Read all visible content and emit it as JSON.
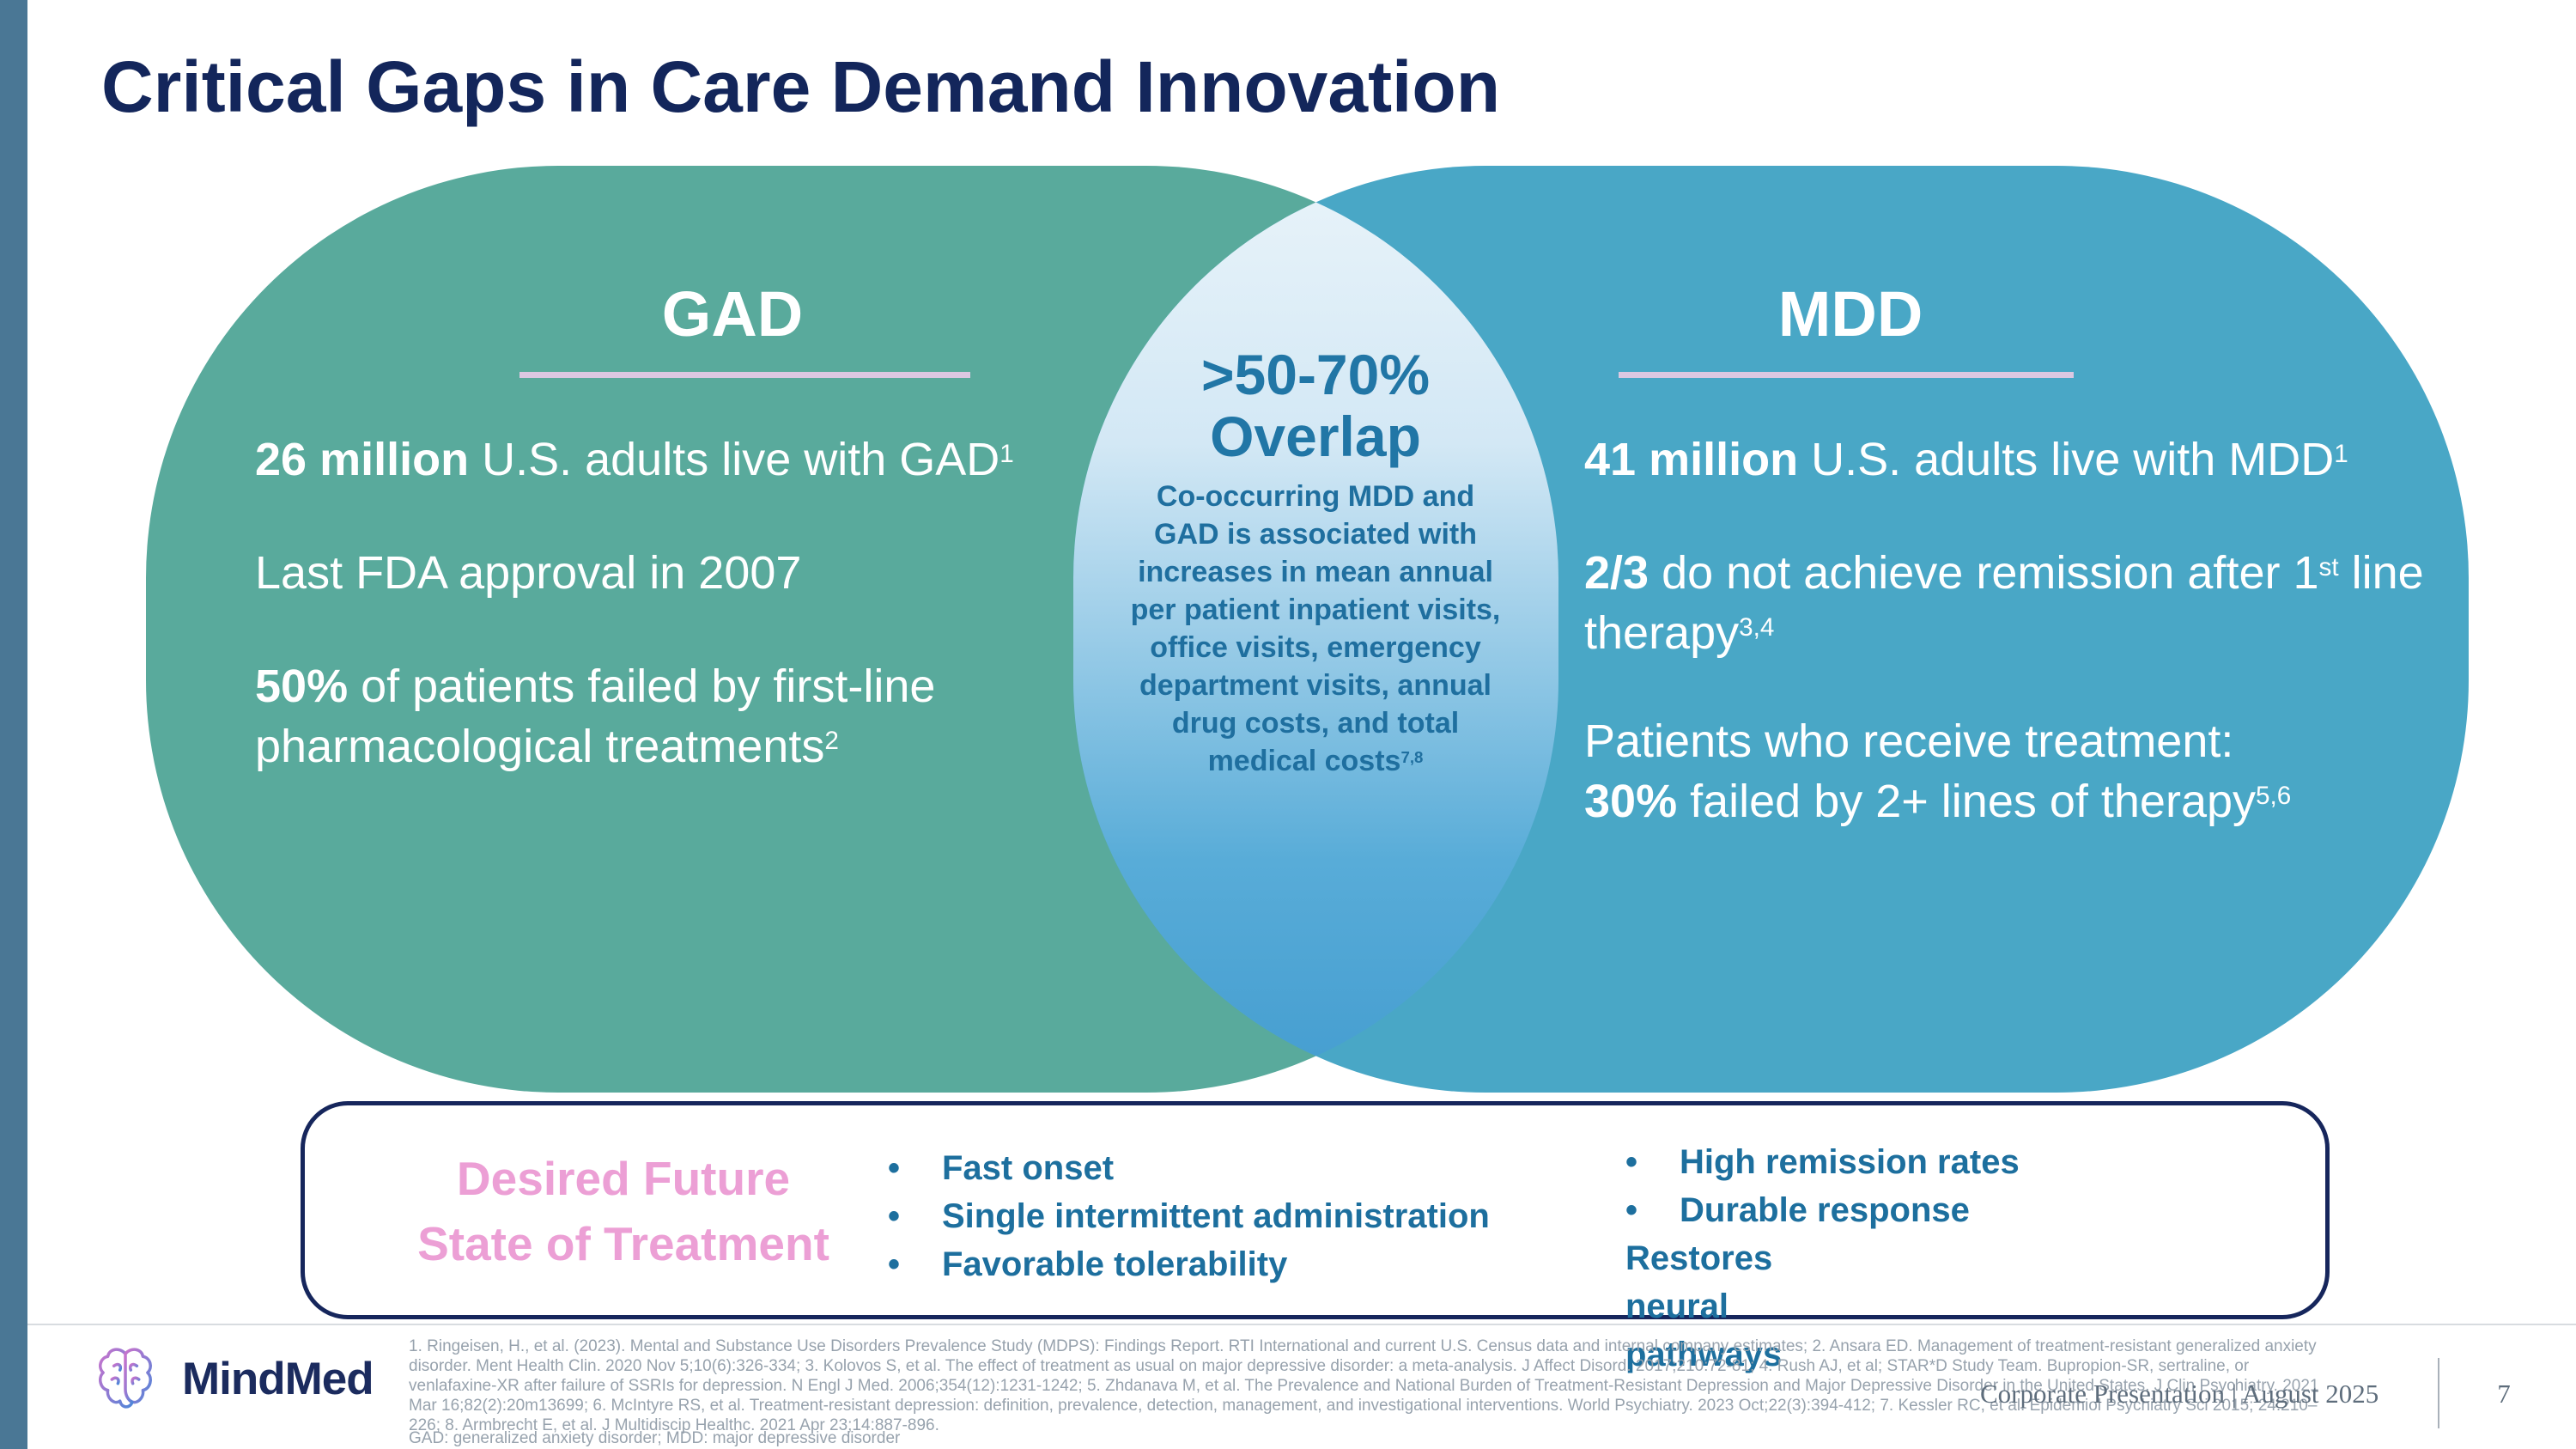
{
  "slide": {
    "title": "Critical Gaps in Care Demand Innovation"
  },
  "colors": {
    "sidebar": "#4a7795",
    "title_navy": "#13265b",
    "gad_teal": "#59aa9c",
    "mdd_blue": "#49a7c6",
    "lens_top": "#e6f2f9",
    "lens_bottom": "#479fd1",
    "lens_text": "#2176a6",
    "heading_underline": "#dcc8e2",
    "pink_accent": "#ec9fd5",
    "bullet_teal": "#1d6f9e",
    "box_border_navy": "#16265c",
    "footer_gray": "#97a2ad"
  },
  "venn": {
    "gad": {
      "heading": "GAD",
      "p1": [
        {
          "t": "26 million ",
          "b": true
        },
        {
          "t": "U.S. adults live with GAD"
        },
        {
          "t": "1",
          "sup": true
        }
      ],
      "p2": [
        {
          "t": "Last FDA approval in 2007"
        }
      ],
      "p3": [
        {
          "t": "50% ",
          "b": true
        },
        {
          "t": "of patients failed by first-line"
        },
        {
          "br": true
        },
        {
          "t": "pharmacological treatments"
        },
        {
          "t": "2",
          "sup": true
        }
      ]
    },
    "mdd": {
      "heading": "MDD",
      "p1": [
        {
          "t": "41 million ",
          "b": true
        },
        {
          "t": "U.S. adults live with MDD"
        },
        {
          "t": "1",
          "sup": true
        }
      ],
      "p2": [
        {
          "t": "2/3 ",
          "b": true
        },
        {
          "t": "do not achieve remission after 1"
        },
        {
          "t": "st",
          "sup": true
        },
        {
          "t": " line"
        },
        {
          "br": true
        },
        {
          "t": "therapy"
        },
        {
          "t": "3,4",
          "sup": true
        }
      ],
      "p3": [
        {
          "t": "Patients who receive treatment:"
        },
        {
          "br": true
        },
        {
          "t": "30% ",
          "b": true
        },
        {
          "t": "failed by 2+ lines of therapy"
        },
        {
          "t": "5,6",
          "sup": true
        }
      ]
    },
    "overlap": {
      "heading": [
        {
          "t": ">50-70%"
        },
        {
          "br": true
        },
        {
          "t": "Overlap"
        }
      ],
      "body": [
        {
          "t": "Co-occurring MDD and"
        },
        {
          "br": true
        },
        {
          "t": "GAD is associated with"
        },
        {
          "br": true
        },
        {
          "t": "increases in mean annual"
        },
        {
          "br": true
        },
        {
          "t": "per patient inpatient visits,"
        },
        {
          "br": true
        },
        {
          "t": "office visits, emergency"
        },
        {
          "br": true
        },
        {
          "t": "department visits, annual"
        },
        {
          "br": true
        },
        {
          "t": "drug costs, and total"
        },
        {
          "br": true
        },
        {
          "t": "medical costs"
        },
        {
          "t": "7,8",
          "sup": true
        }
      ]
    }
  },
  "future_box": {
    "label_line1": "Desired Future",
    "label_line2": "State of Treatment",
    "bullet_char": "•",
    "bullets_col1": [
      "Fast onset",
      "Single intermittent administration",
      "Favorable tolerability"
    ],
    "bullets_col2": [
      "High remission rates",
      "Durable response",
      "Restores neural pathways"
    ]
  },
  "footer": {
    "logo_text": "MindMed",
    "citations": [
      "1. Ringeisen, H., et al. (2023). Mental and Substance Use Disorders Prevalence Study (MDPS): Findings Report. RTI International and current U.S. Census data and internal company estimates; 2. Ansara ED. Management of treatment-resistant generalized anxiety",
      "disorder. Ment Health Clin. 2020 Nov 5;10(6):326-334; 3. Kolovos S, et al. The effect of treatment as usual on major depressive disorder: a meta-analysis. J Affect Disord. 2017;210:72-81; 4. Rush AJ, et al; STAR*D Study Team. Bupropion-SR, sertraline, or",
      "venlafaxine-XR after failure of SSRIs for depression. N Engl J Med. 2006;354(12):1231-1242; 5. Zhdanava M, et al. The Prevalence and National Burden of Treatment-Resistant Depression and Major Depressive Disorder in the United States. J Clin Psychiatry. 2021",
      "Mar 16;82(2):20m13699; 6. McIntyre RS, et al. Treatment-resistant depression: definition, prevalence, detection, management, and investigational interventions. World Psychiatry. 2023 Oct;22(3):394-412; 7. Kessler RC, et al. Epidemiol Psychiatry Sci 2015; 24:210–",
      "226; 8. Armbrecht E, et al. J Multidiscip Healthc. 2021 Apr 23;14:887-896."
    ],
    "abbreviations": "GAD: generalized anxiety disorder; MDD: major depressive disorder",
    "presentation_label": "Corporate Presentation | August 2025",
    "page_number": "7"
  }
}
